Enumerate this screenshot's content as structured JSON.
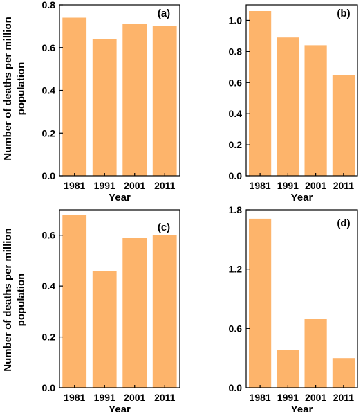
{
  "figure": {
    "ylabel_line1": "Number of deaths per million",
    "ylabel_line2": "population"
  },
  "colors": {
    "bar": "#FDB46B",
    "axis": "#000000"
  },
  "chart_data": [
    {
      "type": "bar",
      "panel_label": "(a)",
      "categories": [
        "1981",
        "1991",
        "2001",
        "2011"
      ],
      "values": [
        0.74,
        0.64,
        0.71,
        0.7
      ],
      "xlabel": "Year",
      "ylabel": "Number of deaths per million population",
      "ylim": [
        0,
        0.8
      ],
      "yticks": [
        0.0,
        0.2,
        0.4,
        0.6,
        0.8
      ],
      "ytick_labels": [
        "0.0",
        "0.2",
        "0.4",
        "0.6",
        "0.8"
      ],
      "grid": false
    },
    {
      "type": "bar",
      "panel_label": "(b)",
      "categories": [
        "1981",
        "1991",
        "2001",
        "2011"
      ],
      "values": [
        1.06,
        0.89,
        0.84,
        0.65
      ],
      "xlabel": "Year",
      "ylabel": "",
      "ylim": [
        0,
        1.1
      ],
      "yticks": [
        0.0,
        0.2,
        0.4,
        0.6,
        0.8,
        1.0
      ],
      "ytick_labels": [
        "0.0",
        "0.2",
        "0.4",
        "0.6",
        "0.8",
        "1.0"
      ],
      "grid": false
    },
    {
      "type": "bar",
      "panel_label": "(c)",
      "categories": [
        "1981",
        "1991",
        "2001",
        "2011"
      ],
      "values": [
        0.68,
        0.46,
        0.59,
        0.6
      ],
      "xlabel": "Year",
      "ylabel": "Number of deaths per million population",
      "ylim": [
        0,
        0.7
      ],
      "yticks": [
        0.0,
        0.2,
        0.4,
        0.6
      ],
      "ytick_labels": [
        "0.0",
        "0.2",
        "0.4",
        "0.6"
      ],
      "grid": false
    },
    {
      "type": "bar",
      "panel_label": "(d)",
      "categories": [
        "1981",
        "1991",
        "2001",
        "2011"
      ],
      "values": [
        1.71,
        0.38,
        0.7,
        0.3
      ],
      "xlabel": "Year",
      "ylabel": "",
      "ylim": [
        0,
        1.8
      ],
      "yticks": [
        0.0,
        0.6,
        1.2,
        1.8
      ],
      "ytick_labels": [
        "0.0",
        "0.6",
        "1.2",
        "1.8"
      ],
      "grid": false
    }
  ]
}
